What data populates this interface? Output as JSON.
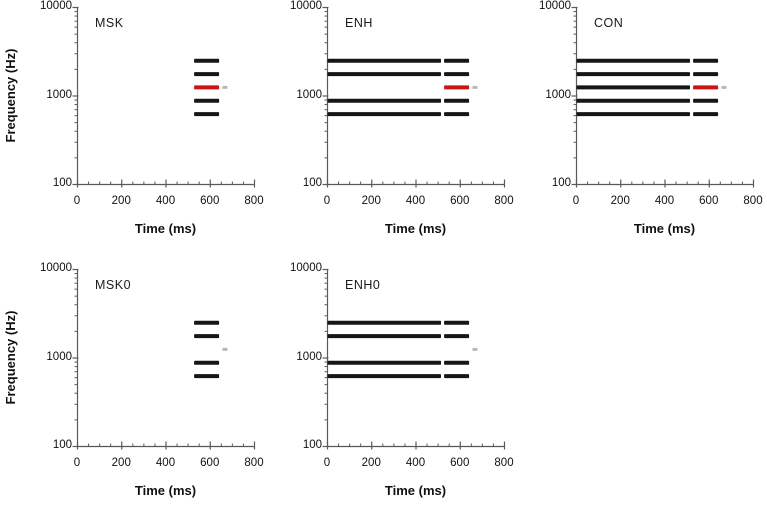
{
  "figure": {
    "background": "#ffffff",
    "y_axis": {
      "label": "Frequency (Hz)",
      "scale": "log",
      "min": 100,
      "max": 10000,
      "major_tick_values": [
        100,
        1000,
        10000
      ],
      "tick_labels": [
        "100",
        "1000",
        "10000"
      ],
      "minor_ticks_per_decade": [
        2,
        3,
        4,
        5,
        6,
        7,
        8,
        9
      ]
    },
    "x_axis": {
      "label": "Time (ms)",
      "min": 0,
      "max": 800,
      "major_tick_values": [
        0,
        200,
        400,
        600,
        800
      ],
      "tick_labels": [
        "0",
        "200",
        "400",
        "600",
        "800"
      ],
      "minor_step": 50
    },
    "colors": {
      "band": "#161616",
      "signal": "#cc1414",
      "probe": "#b8b8b8",
      "axis": "#5a5a5a",
      "text": "#111111"
    }
  },
  "chart_data": {
    "type": "line",
    "description": "Schematic spectrograms of stimulus conditions: horizontal frequency-band segments vs time; red segment = 1250 Hz signal, gray segment = 1250 Hz probe",
    "band_frequencies_hz": [
      625,
      884,
      1250,
      1768,
      2500
    ],
    "signal_frequency_hz": 1250,
    "legend": null,
    "panels": [
      {
        "label": "MSK",
        "segments": [
          {
            "freq_hz": 2500,
            "t0_ms": 527,
            "t1_ms": 640,
            "role": "band"
          },
          {
            "freq_hz": 1768,
            "t0_ms": 527,
            "t1_ms": 640,
            "role": "band"
          },
          {
            "freq_hz": 1250,
            "t0_ms": 527,
            "t1_ms": 640,
            "role": "signal"
          },
          {
            "freq_hz": 884,
            "t0_ms": 527,
            "t1_ms": 640,
            "role": "band"
          },
          {
            "freq_hz": 625,
            "t0_ms": 527,
            "t1_ms": 640,
            "role": "band"
          },
          {
            "freq_hz": 1250,
            "t0_ms": 655,
            "t1_ms": 678,
            "role": "probe"
          }
        ]
      },
      {
        "label": "ENH",
        "segments": [
          {
            "freq_hz": 2500,
            "t0_ms": 0,
            "t1_ms": 513,
            "role": "band"
          },
          {
            "freq_hz": 1768,
            "t0_ms": 0,
            "t1_ms": 513,
            "role": "band"
          },
          {
            "freq_hz": 884,
            "t0_ms": 0,
            "t1_ms": 513,
            "role": "band"
          },
          {
            "freq_hz": 625,
            "t0_ms": 0,
            "t1_ms": 513,
            "role": "band"
          },
          {
            "freq_hz": 2500,
            "t0_ms": 527,
            "t1_ms": 640,
            "role": "band"
          },
          {
            "freq_hz": 1768,
            "t0_ms": 527,
            "t1_ms": 640,
            "role": "band"
          },
          {
            "freq_hz": 1250,
            "t0_ms": 527,
            "t1_ms": 640,
            "role": "signal"
          },
          {
            "freq_hz": 884,
            "t0_ms": 527,
            "t1_ms": 640,
            "role": "band"
          },
          {
            "freq_hz": 625,
            "t0_ms": 527,
            "t1_ms": 640,
            "role": "band"
          },
          {
            "freq_hz": 1250,
            "t0_ms": 655,
            "t1_ms": 678,
            "role": "probe"
          }
        ]
      },
      {
        "label": "CON",
        "segments": [
          {
            "freq_hz": 2500,
            "t0_ms": 0,
            "t1_ms": 513,
            "role": "band"
          },
          {
            "freq_hz": 1768,
            "t0_ms": 0,
            "t1_ms": 513,
            "role": "band"
          },
          {
            "freq_hz": 1250,
            "t0_ms": 0,
            "t1_ms": 513,
            "role": "band"
          },
          {
            "freq_hz": 884,
            "t0_ms": 0,
            "t1_ms": 513,
            "role": "band"
          },
          {
            "freq_hz": 625,
            "t0_ms": 0,
            "t1_ms": 513,
            "role": "band"
          },
          {
            "freq_hz": 2500,
            "t0_ms": 527,
            "t1_ms": 640,
            "role": "band"
          },
          {
            "freq_hz": 1768,
            "t0_ms": 527,
            "t1_ms": 640,
            "role": "band"
          },
          {
            "freq_hz": 1250,
            "t0_ms": 527,
            "t1_ms": 640,
            "role": "signal"
          },
          {
            "freq_hz": 884,
            "t0_ms": 527,
            "t1_ms": 640,
            "role": "band"
          },
          {
            "freq_hz": 625,
            "t0_ms": 527,
            "t1_ms": 640,
            "role": "band"
          },
          {
            "freq_hz": 1250,
            "t0_ms": 655,
            "t1_ms": 678,
            "role": "probe"
          }
        ]
      },
      {
        "label": "MSK0",
        "segments": [
          {
            "freq_hz": 2500,
            "t0_ms": 527,
            "t1_ms": 640,
            "role": "band"
          },
          {
            "freq_hz": 1768,
            "t0_ms": 527,
            "t1_ms": 640,
            "role": "band"
          },
          {
            "freq_hz": 884,
            "t0_ms": 527,
            "t1_ms": 640,
            "role": "band"
          },
          {
            "freq_hz": 625,
            "t0_ms": 527,
            "t1_ms": 640,
            "role": "band"
          },
          {
            "freq_hz": 1250,
            "t0_ms": 655,
            "t1_ms": 678,
            "role": "probe"
          }
        ]
      },
      {
        "label": "ENH0",
        "segments": [
          {
            "freq_hz": 2500,
            "t0_ms": 0,
            "t1_ms": 513,
            "role": "band"
          },
          {
            "freq_hz": 1768,
            "t0_ms": 0,
            "t1_ms": 513,
            "role": "band"
          },
          {
            "freq_hz": 884,
            "t0_ms": 0,
            "t1_ms": 513,
            "role": "band"
          },
          {
            "freq_hz": 625,
            "t0_ms": 0,
            "t1_ms": 513,
            "role": "band"
          },
          {
            "freq_hz": 2500,
            "t0_ms": 527,
            "t1_ms": 640,
            "role": "band"
          },
          {
            "freq_hz": 1768,
            "t0_ms": 527,
            "t1_ms": 640,
            "role": "band"
          },
          {
            "freq_hz": 884,
            "t0_ms": 527,
            "t1_ms": 640,
            "role": "band"
          },
          {
            "freq_hz": 625,
            "t0_ms": 527,
            "t1_ms": 640,
            "role": "band"
          },
          {
            "freq_hz": 1250,
            "t0_ms": 655,
            "t1_ms": 678,
            "role": "probe"
          }
        ]
      }
    ]
  }
}
